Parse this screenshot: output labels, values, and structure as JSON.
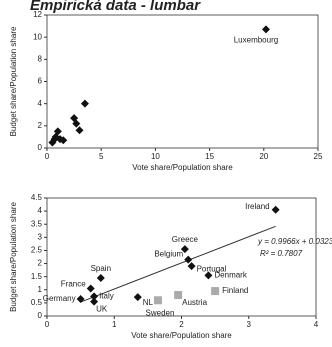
{
  "title": "Empirická data - lumbar",
  "chart_data": [
    {
      "type": "scatter",
      "xlabel": "Vote share/Population share",
      "ylabel": "Budget share/Population share",
      "xlim": [
        0,
        25
      ],
      "xticks": [
        0,
        5,
        10,
        15,
        20,
        25
      ],
      "ylim": [
        0,
        12
      ],
      "yticks": [
        0,
        2,
        4,
        6,
        8,
        10,
        12
      ],
      "series": [
        {
          "color": "#111111",
          "marker": "diamond",
          "x": [
            20.2,
            0.5,
            0.8,
            1.0,
            0.7,
            1.5,
            3.5,
            2.5,
            2.7,
            3.0,
            1.2
          ],
          "values": [
            10.7,
            0.5,
            1.0,
            1.5,
            0.8,
            0.7,
            4.0,
            2.7,
            2.2,
            1.6,
            0.8
          ],
          "labels": [
            "Luxembourg",
            null,
            null,
            null,
            null,
            null,
            null,
            null,
            null,
            null,
            null
          ]
        }
      ]
    },
    {
      "type": "scatter",
      "xlabel": "Vote share/Population share",
      "ylabel": "Budget share/Population share",
      "xlim": [
        0,
        4
      ],
      "xticks": [
        0,
        1,
        2,
        3,
        4
      ],
      "ylim": [
        0,
        4.5
      ],
      "yticks": [
        0,
        0.5,
        1,
        1.5,
        2,
        2.5,
        3,
        3.5,
        4,
        4.5
      ],
      "trend": {
        "slope": 0.9966,
        "intercept": 0.0323
      },
      "annotations": [
        "y = 0.9966x + 0.0323",
        "R² = 0.7807"
      ],
      "series": [
        {
          "color": "#111111",
          "marker": "diamond",
          "x": [
            3.4,
            2.05,
            2.1,
            2.15,
            2.4,
            0.8,
            0.65,
            0.5,
            0.7,
            0.7,
            1.35
          ],
          "values": [
            4.05,
            2.55,
            2.15,
            1.9,
            1.55,
            1.45,
            1.05,
            0.65,
            0.75,
            0.55,
            0.72
          ],
          "labels": [
            "Ireland",
            "Greece",
            "Belgium",
            "Portugal",
            "Denmark",
            "Spain",
            "France",
            "Germany",
            "Italy",
            "UK",
            "NL"
          ]
        },
        {
          "color": "#aaaaaa",
          "marker": "square",
          "x": [
            1.65,
            1.95,
            2.5
          ],
          "values": [
            0.6,
            0.8,
            0.95
          ],
          "labels": [
            "Sweden",
            "Austria",
            "Finland"
          ]
        }
      ]
    }
  ]
}
